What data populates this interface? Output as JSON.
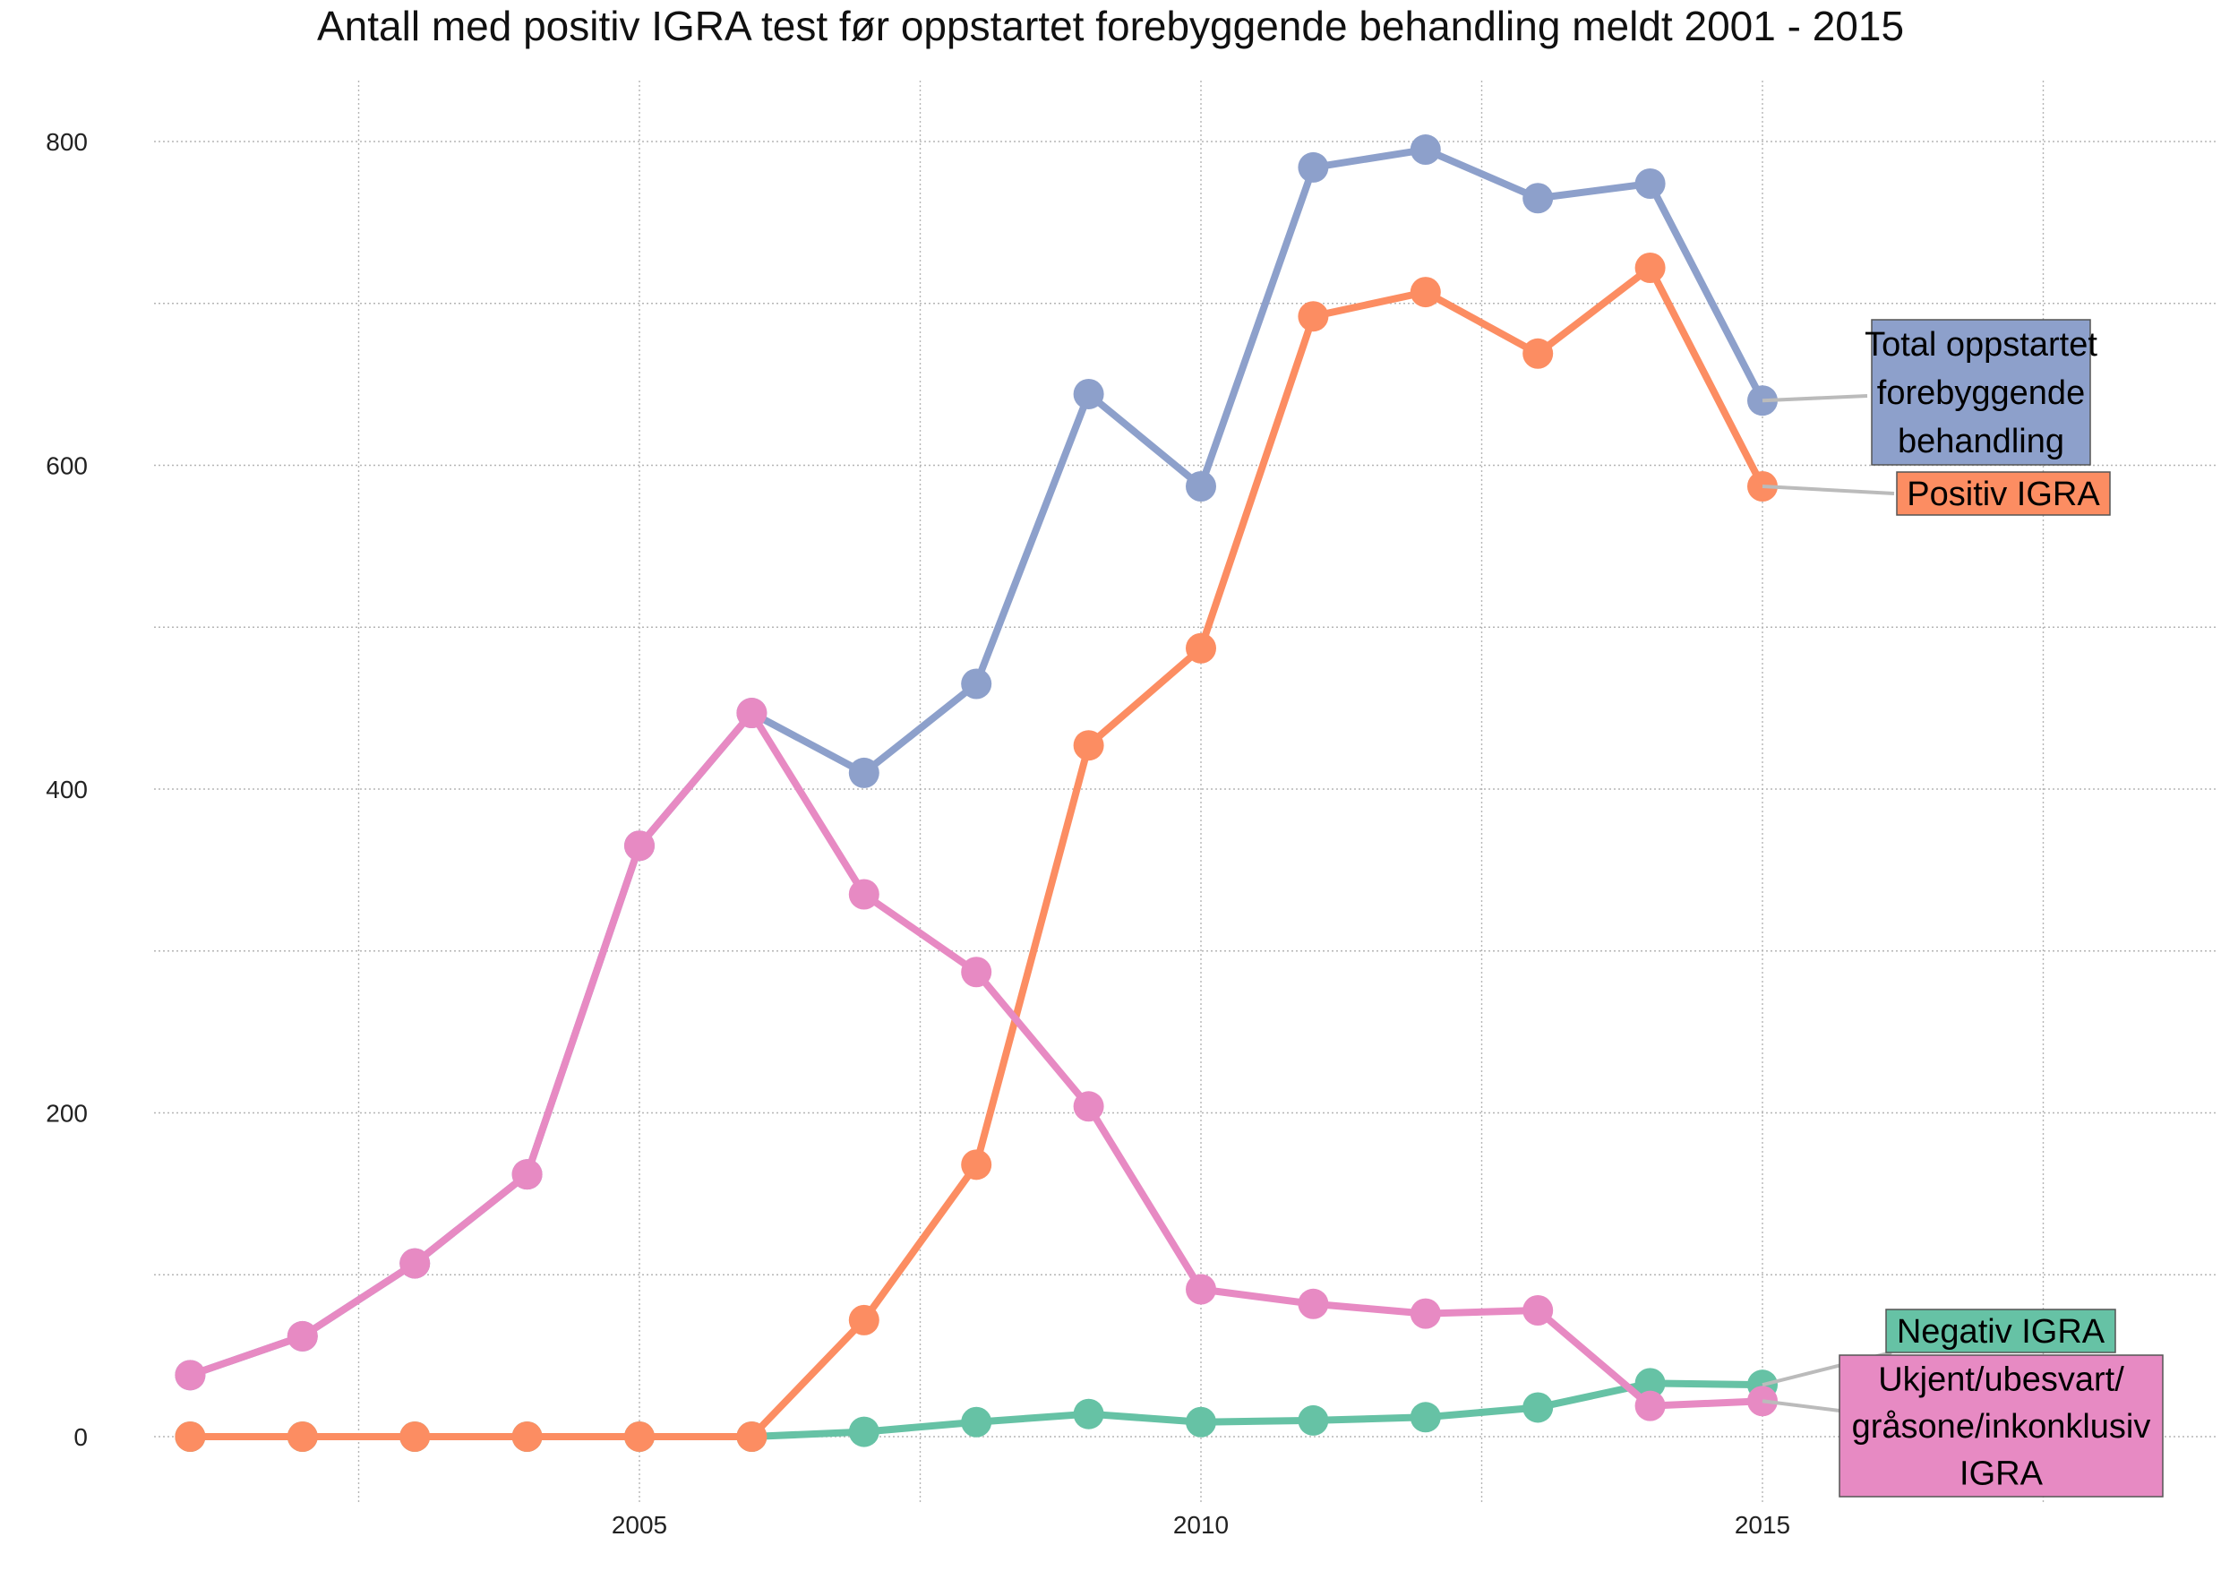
{
  "chart_data": {
    "type": "line",
    "title": "Antall med positiv IGRA test før oppstartet forebyggende behandling meldt 2001 - 2015",
    "xlabel": "",
    "ylabel": "",
    "xlim": [
      2000.2,
      2018.0
    ],
    "ylim": [
      -40,
      830
    ],
    "x_ticks": [
      2005,
      2010,
      2015
    ],
    "y_ticks": [
      0,
      200,
      400,
      600,
      800
    ],
    "grid": true,
    "legend": "none (direct labels at right)",
    "x": [
      2001,
      2002,
      2003,
      2004,
      2005,
      2006,
      2007,
      2008,
      2009,
      2010,
      2011,
      2012,
      2013,
      2014,
      2015
    ],
    "series": [
      {
        "name": "Total oppstartet forebyggende behandling",
        "label_lines": [
          "Total oppstartet",
          "forebyggende",
          "behandling"
        ],
        "color": "#8DA0CB",
        "values": [
          38,
          62,
          107,
          162,
          365,
          447,
          410,
          465,
          644,
          587,
          784,
          795,
          765,
          774,
          640
        ]
      },
      {
        "name": "Positiv IGRA",
        "label_lines": [
          "Positiv IGRA"
        ],
        "color": "#FC8D62",
        "values": [
          0,
          0,
          0,
          0,
          0,
          0,
          72,
          168,
          427,
          487,
          692,
          707,
          669,
          722,
          587
        ]
      },
      {
        "name": "Negativ IGRA",
        "label_lines": [
          "Negativ IGRA"
        ],
        "color": "#66C2A5",
        "values": [
          0,
          0,
          0,
          0,
          0,
          0,
          3,
          9,
          14,
          9,
          10,
          12,
          18,
          33,
          32
        ]
      },
      {
        "name": "Ukjent/ubesvart/gråsone/inkonklusiv IGRA",
        "label_lines": [
          "Ukjent/ubesvart/",
          "gråsone/inkonklusiv",
          "IGRA"
        ],
        "color": "#E78AC3",
        "values": [
          38,
          62,
          107,
          162,
          365,
          447,
          335,
          287,
          204,
          91,
          82,
          76,
          78,
          19,
          22
        ]
      }
    ]
  }
}
